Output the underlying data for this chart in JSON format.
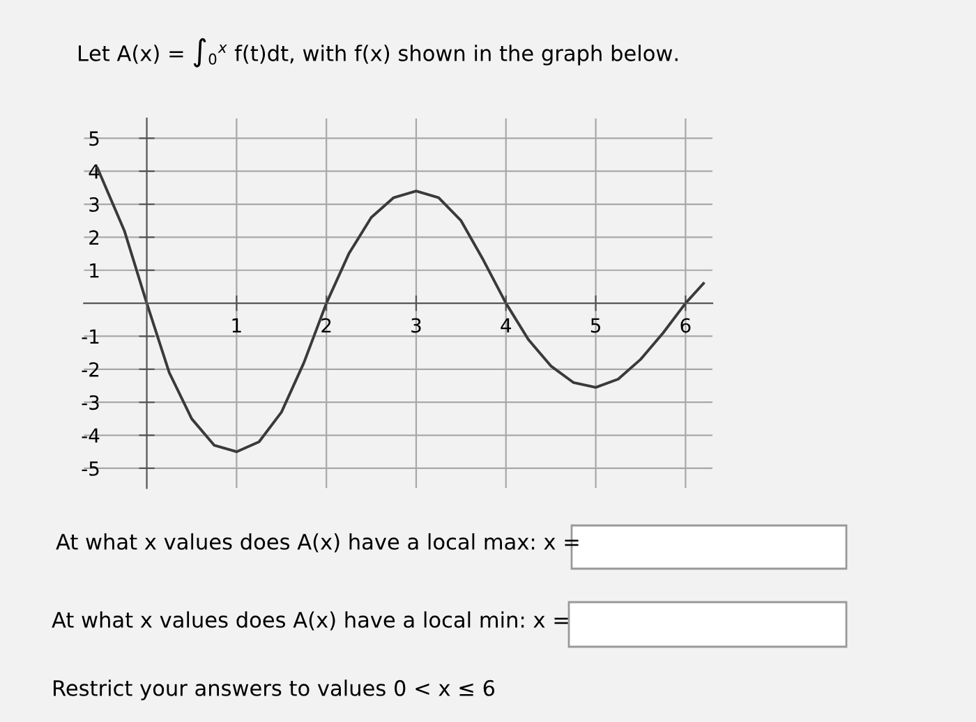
{
  "chart_data": {
    "type": "line",
    "title": "Let A(x) = ∫$_{0}$$^{x}$ f(t)dt, with f(x) shown in the graph below.",
    "x": [
      -0.55,
      -0.25,
      0,
      0.25,
      0.5,
      0.75,
      1,
      1.25,
      1.5,
      1.75,
      2,
      2.25,
      2.5,
      2.75,
      3,
      3.25,
      3.5,
      3.75,
      4,
      4.25,
      4.5,
      4.75,
      5,
      5.25,
      5.5,
      5.75,
      6,
      6.2
    ],
    "series": [
      {
        "color": "#3a3a3a",
        "values": [
          4.1,
          2.2,
          0,
          -2.1,
          -3.5,
          -4.3,
          -4.5,
          -4.2,
          -3.3,
          -1.8,
          0,
          1.5,
          2.6,
          3.2,
          3.4,
          3.2,
          2.5,
          1.3,
          0,
          -1.1,
          -1.9,
          -2.4,
          -2.55,
          -2.3,
          -1.7,
          -0.9,
          0,
          0.6
        ]
      }
    ],
    "xlim": [
      -0.7,
      6.3
    ],
    "ylim": [
      -5.6,
      5.6
    ],
    "xticks": [
      1,
      2,
      3,
      4,
      5,
      6
    ],
    "yticks": [
      -5,
      -4,
      -3,
      -2,
      -1,
      1,
      2,
      3,
      4,
      5
    ],
    "grid": true,
    "marker": "none",
    "line_style": "solid",
    "annotations": [
      "At what x values does A(x) have a local max: x =",
      "At what x values does A(x) have a local min: x =",
      "Restrict your answers to values 0 < x ≤ 6"
    ]
  }
}
